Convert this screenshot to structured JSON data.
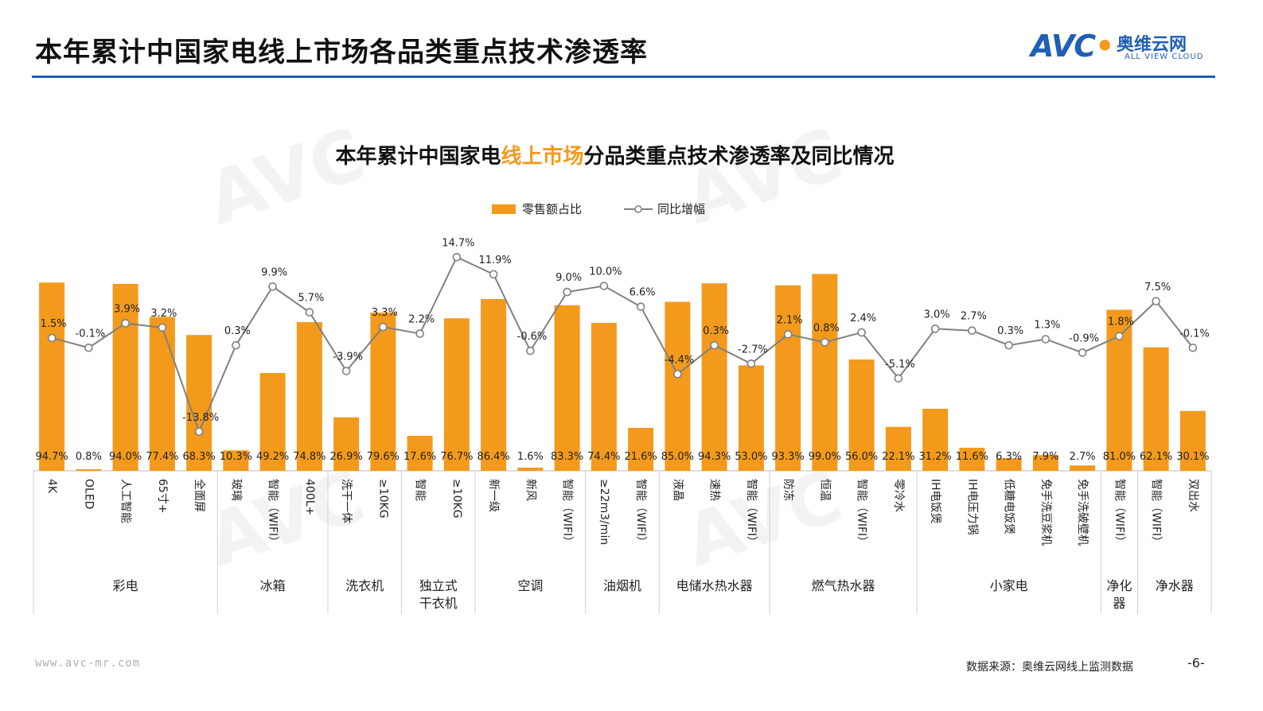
{
  "page": {
    "title": "本年累计中国家电线上市场各品类重点技术渗透率",
    "logo_mark": "AVC",
    "logo_cn": "奥维云网",
    "logo_en": "ALL VIEW CLOUD",
    "footer_url": "www.avc-mr.com",
    "footer_source": "数据来源：奥维云网线上监测数据",
    "page_number": "-6-"
  },
  "colors": {
    "accent": "#1f5fb5",
    "bar": "#f39a1c",
    "line": "#808080"
  },
  "chart_data": {
    "type": "bar",
    "title_parts": [
      "本年累计中国家电",
      "线上市场",
      "分品类重点技术渗透率及同比情况"
    ],
    "legend": [
      "零售额占比",
      "同比增幅"
    ],
    "categories": [
      "4K",
      "OLED",
      "人工智能",
      "65寸+",
      "全面屏",
      "玻璃",
      "智能（WIFI）",
      "400L+",
      "洗干一体",
      "≥10KG",
      "智能",
      "≥10KG",
      "新一级",
      "新风",
      "智能（WIFI）",
      "≥22m3/min",
      "智能（WIFI）",
      "液晶",
      "速热",
      "智能（WIFI）",
      "防冻",
      "恒温",
      "智能（WIFI）",
      "零冷水",
      "IH电饭煲",
      "IH电压力锅",
      "低糖电饭煲",
      "免手洗豆浆机",
      "免手洗破壁机",
      "智能（WIFI）",
      "智能（WIFI）",
      "双出水"
    ],
    "groups": [
      {
        "label": "彩电",
        "count": 5
      },
      {
        "label": "冰箱",
        "count": 3
      },
      {
        "label": "洗衣机",
        "count": 2
      },
      {
        "label": "独立式\n干衣机",
        "count": 2
      },
      {
        "label": "空调",
        "count": 3
      },
      {
        "label": "油烟机",
        "count": 2
      },
      {
        "label": "电储水热水器",
        "count": 3
      },
      {
        "label": "燃气热水器",
        "count": 4
      },
      {
        "label": "小家电",
        "count": 5
      },
      {
        "label": "净化\n器",
        "count": 1
      },
      {
        "label": "净水器",
        "count": 2
      }
    ],
    "series": [
      {
        "name": "零售额占比",
        "type": "bar",
        "values": [
          94.7,
          0.8,
          94.0,
          77.4,
          68.3,
          10.3,
          49.2,
          74.8,
          26.9,
          79.6,
          17.6,
          76.7,
          86.4,
          1.6,
          83.3,
          74.4,
          21.6,
          85.0,
          94.3,
          53.0,
          93.3,
          99.0,
          56.0,
          22.1,
          31.2,
          11.6,
          6.3,
          7.9,
          2.7,
          81.0,
          62.1,
          30.1
        ],
        "labels": [
          "94.7%",
          "0.8%",
          "94.0%",
          "77.4%",
          "68.3%",
          "10.3%",
          "49.2%",
          "74.8%",
          "26.9%",
          "79.6%",
          "17.6%",
          "76.7%",
          "86.4%",
          "1.6%",
          "83.3%",
          "74.4%",
          "21.6%",
          "85.0%",
          "94.3%",
          "53.0%",
          "93.3%",
          "99.0%",
          "56.0%",
          "22.1%",
          "31.2%",
          "11.6%",
          "6.3%",
          "7.9%",
          "2.7%",
          "81.0%",
          "62.1%",
          "30.1%"
        ]
      },
      {
        "name": "同比增幅",
        "type": "line",
        "values": [
          1.5,
          -0.1,
          3.9,
          3.2,
          -13.8,
          0.3,
          9.9,
          5.7,
          -3.9,
          3.3,
          2.2,
          14.7,
          11.9,
          -0.6,
          9.0,
          10.0,
          6.6,
          -4.4,
          0.3,
          -2.7,
          2.1,
          0.8,
          2.4,
          -5.1,
          3.0,
          2.7,
          0.3,
          1.3,
          -0.9,
          1.8,
          7.5,
          -0.1
        ],
        "labels": [
          "1.5%",
          "-0.1%",
          "3.9%",
          "3.2%",
          "-13.8%",
          "0.3%",
          "9.9%",
          "5.7%",
          "-3.9%",
          "3.3%",
          "2.2%",
          "14.7%",
          "11.9%",
          "-0.6%",
          "9.0%",
          "10.0%",
          "6.6%",
          "-4.4%",
          "0.3%",
          "-2.7%",
          "2.1%",
          "0.8%",
          "2.4%",
          "-5.1%",
          "3.0%",
          "2.7%",
          "0.3%",
          "1.3%",
          "-0.9%",
          "1.8%",
          "7.5%",
          "-0.1%"
        ]
      }
    ]
  }
}
